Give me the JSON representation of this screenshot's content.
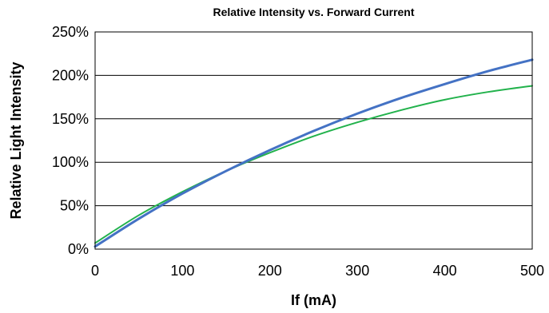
{
  "chart_data": {
    "type": "line",
    "title": "Relative Intensity vs. Forward Current",
    "xlabel": "If (mA)",
    "ylabel": "Relative Light Intensity",
    "xlim": [
      0,
      500
    ],
    "ylim": [
      0,
      250
    ],
    "xticks": [
      "0",
      "100",
      "200",
      "300",
      "400",
      "500"
    ],
    "yticks": [
      "0%",
      "50%",
      "100%",
      "150%",
      "200%",
      "250%"
    ],
    "grid": "horizontal",
    "legend": "none",
    "series": [
      {
        "color": "#4472c4",
        "x": [
          0,
          50,
          100,
          150,
          200,
          250,
          300,
          350,
          400,
          450,
          500
        ],
        "y": [
          3,
          35,
          64,
          90,
          114,
          136,
          156,
          174,
          190,
          205,
          218
        ]
      },
      {
        "color": "#22b24c",
        "x": [
          0,
          50,
          100,
          150,
          200,
          250,
          300,
          350,
          400,
          450,
          500
        ],
        "y": [
          7,
          39,
          66,
          90,
          111,
          130,
          146,
          160,
          172,
          181,
          188
        ]
      }
    ]
  }
}
